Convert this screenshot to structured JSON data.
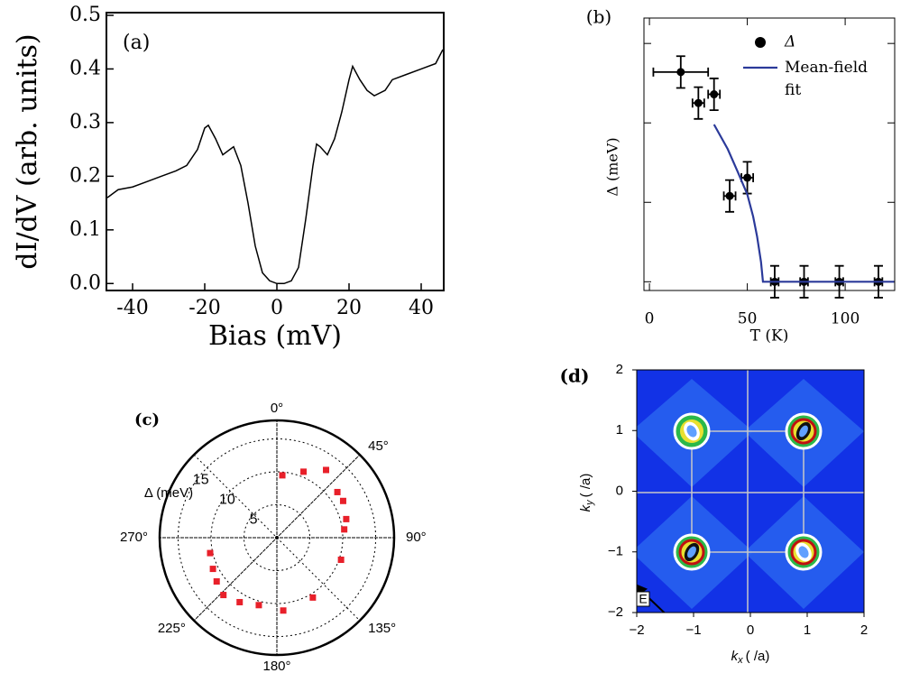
{
  "chart_data": [
    {
      "type": "line",
      "panel_label": "(a)",
      "xlabel": "Bias (mV)",
      "ylabel": "dI/dV (arb. units)",
      "color": "#000000",
      "x": [
        -47,
        -44,
        -40,
        -36,
        -32,
        -28,
        -25,
        -22,
        -20,
        -19,
        -17,
        -15,
        -13,
        -12,
        -10,
        -8,
        -6,
        -4,
        -2,
        0,
        2,
        4,
        6,
        8,
        10,
        11,
        12,
        14,
        16,
        18,
        20,
        21,
        23,
        25,
        27,
        30,
        32,
        36,
        40,
        44,
        46
      ],
      "values": [
        0.16,
        0.175,
        0.18,
        0.19,
        0.2,
        0.21,
        0.22,
        0.25,
        0.29,
        0.295,
        0.27,
        0.24,
        0.25,
        0.255,
        0.22,
        0.15,
        0.07,
        0.02,
        0.005,
        0.0,
        0.0,
        0.005,
        0.03,
        0.12,
        0.22,
        0.26,
        0.255,
        0.24,
        0.27,
        0.32,
        0.38,
        0.405,
        0.38,
        0.36,
        0.35,
        0.36,
        0.38,
        0.39,
        0.4,
        0.41,
        0.436
      ],
      "xlim": [
        -47.25,
        46.25
      ],
      "ylim": [
        -0.013,
        0.505
      ],
      "xticks": [
        -40,
        -20,
        0,
        20,
        40
      ],
      "yticks": [
        {
          "value": 0,
          "label": "0.0"
        },
        0.1,
        0.2,
        0.3,
        0.4,
        0.5
      ]
    },
    {
      "type": "scatter",
      "panel_label": "(b)",
      "xlabel": "T (K)",
      "ylabel": "Δ (meV)",
      "legend": "upper right",
      "xlim": [
        -2.8,
        125.3
      ],
      "ylim": [
        -0.11,
        3.32
      ],
      "xticks": [
        0,
        50,
        100
      ],
      "yticks": [
        0,
        1,
        2,
        3
      ],
      "series": [
        {
          "name": "Δ",
          "color": "#000000",
          "x": [
            16,
            25,
            33,
            41,
            50,
            64,
            79,
            97,
            117
          ],
          "values": [
            2.64,
            2.25,
            2.36,
            1.08,
            1.31,
            0,
            0,
            0,
            0
          ],
          "xerr": [
            14,
            3,
            3,
            3,
            3,
            2,
            2,
            2,
            2
          ],
          "yerr": [
            0.2,
            0.2,
            0.2,
            0.2,
            0.2,
            0.2,
            0.2,
            0.2,
            0.2
          ]
        },
        {
          "name": "Mean-field fit",
          "color": "#2b3a9a",
          "x": [
            33,
            40,
            45,
            50,
            53,
            55,
            57,
            58,
            80,
            100,
            125
          ],
          "values": [
            1.98,
            1.67,
            1.39,
            1.1,
            0.82,
            0.57,
            0.25,
            0,
            0,
            0,
            0
          ]
        }
      ]
    },
    {
      "type": "polar",
      "panel_label": "(c)",
      "rlabel": "Δ (meV)",
      "color": "#e8202a",
      "rlim": [
        0,
        17.8
      ],
      "rticks": [
        5,
        10,
        15
      ],
      "angle_ticks": [
        {
          "value": 0,
          "label": "0°"
        },
        {
          "value": 45,
          "label": "45°"
        },
        {
          "value": 90,
          "label": "90°"
        },
        {
          "value": 135,
          "label": "135°"
        },
        {
          "value": 180,
          "label": "180°"
        },
        {
          "value": 225,
          "label": "225°"
        },
        {
          "value": 270,
          "label": "270°"
        }
      ],
      "angles": [
        5,
        22,
        36,
        53,
        61,
        75,
        83,
        109,
        149,
        175,
        195,
        210,
        223,
        234,
        244,
        257
      ],
      "values": [
        9.5,
        10.8,
        12.7,
        11.5,
        11.5,
        10.9,
        10.3,
        10.3,
        10.6,
        11.1,
        10.6,
        11.3,
        11.9,
        11.3,
        10.8,
        10.4
      ],
      "errors": [
        0.4,
        0.4,
        0.4,
        0.4,
        0.4,
        0.4,
        0.4,
        0.4,
        0.4,
        0.4,
        0.4,
        0.4,
        0.4,
        0.4,
        0.4,
        0.4
      ]
    },
    {
      "type": "image",
      "panel_label": "(d)",
      "annotation": "E",
      "xlabel": {
        "symbol": "k",
        "subscript": "x",
        "unit": "( /a)"
      },
      "ylabel": {
        "symbol": "k",
        "subscript": "y",
        "unit": "( /a)"
      },
      "xlim": [
        -2,
        2
      ],
      "ylim": [
        -2,
        2
      ],
      "xticks": [
        {
          "value": -2,
          "label": "−2"
        },
        {
          "value": -1,
          "label": "−1"
        },
        0,
        1,
        2
      ],
      "yticks": [
        {
          "value": -2,
          "label": "−2"
        },
        {
          "value": -1,
          "label": "−1"
        },
        0,
        1,
        2
      ]
    }
  ]
}
